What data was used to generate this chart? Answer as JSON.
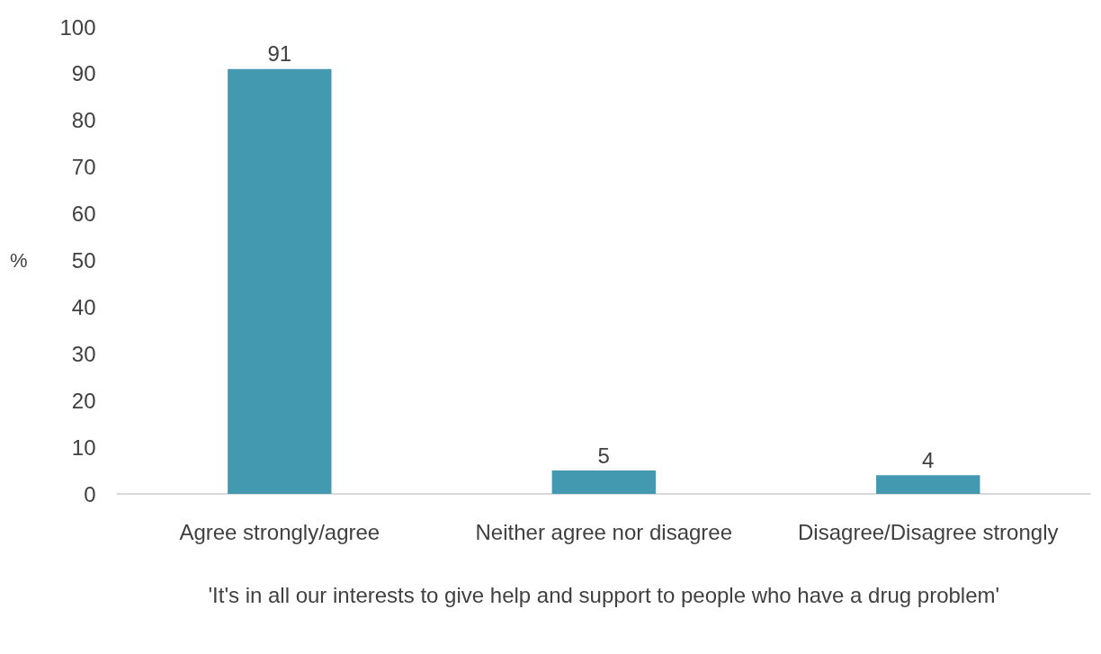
{
  "chart_data": {
    "type": "bar",
    "xlabel": "'It's in all our interests to give help and support to people who have a drug problem'",
    "ylabel": "%",
    "categories": [
      "Agree strongly/agree",
      "Neither agree nor disagree",
      "Disagree/Disagree strongly"
    ],
    "values": [
      91,
      5,
      4
    ],
    "color": "#4299b0",
    "ylim": [
      0,
      100
    ],
    "yticks": [
      0,
      10,
      20,
      30,
      40,
      50,
      60,
      70,
      80,
      90,
      100
    ],
    "grid": false,
    "data_labels": true
  }
}
